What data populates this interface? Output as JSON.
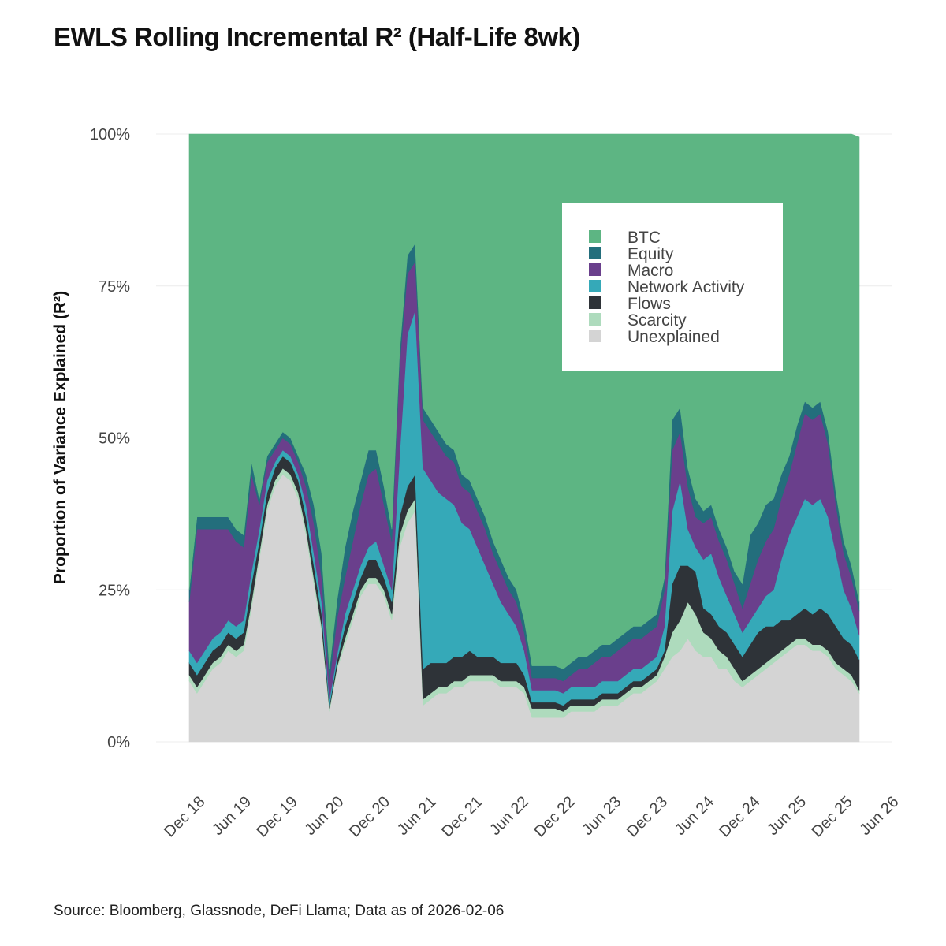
{
  "title": "EWLS Rolling Incremental R² (Half-Life 8wk)",
  "source": "Source: Bloomberg, Glassnode, DeFi Llama; Data as of 2026-02-06",
  "chart_data": {
    "type": "area",
    "stacked": true,
    "title": "EWLS Rolling Incremental R² (Half-Life 8wk)",
    "ylabel": "Proportion of Variance Explained (R²)",
    "xlabel": "",
    "ylim": [
      0,
      100
    ],
    "y_unit": "%",
    "yticks": [
      0,
      25,
      50,
      75,
      100
    ],
    "ytick_labels": [
      "0%",
      "25%",
      "50%",
      "75%",
      "100%"
    ],
    "xticks": [
      "2018-12",
      "2019-06",
      "2019-12",
      "2020-06",
      "2020-12",
      "2021-06",
      "2021-12",
      "2022-06",
      "2022-12",
      "2023-06",
      "2023-12",
      "2024-06",
      "2024-12",
      "2025-06",
      "2025-12",
      "2026-06"
    ],
    "xtick_labels": [
      "Dec 18",
      "Jun 19",
      "Dec 19",
      "Jun 20",
      "Dec 20",
      "Jun 21",
      "Dec 21",
      "Jun 22",
      "Dec 22",
      "Jun 23",
      "Dec 23",
      "Jun 24",
      "Dec 24",
      "Jun 25",
      "Dec 25",
      "Jun 26"
    ],
    "legend_position": "upper-right",
    "grid": "horizontal",
    "x": [
      "2018-11",
      "2018-12",
      "2019-02",
      "2019-03",
      "2019-04",
      "2019-05",
      "2019-06",
      "2019-07",
      "2019-08",
      "2019-09",
      "2019-10",
      "2019-11",
      "2019-12",
      "2020-01",
      "2020-02",
      "2020-03",
      "2020-04",
      "2020-05",
      "2020-06",
      "2020-07",
      "2020-08",
      "2020-09",
      "2020-10",
      "2020-11",
      "2020-12",
      "2021-01",
      "2021-02",
      "2021-03",
      "2021-04",
      "2021-05",
      "2021-06",
      "2021-07",
      "2021-08",
      "2021-09",
      "2021-10",
      "2021-11",
      "2021-12",
      "2022-01",
      "2022-02",
      "2022-03",
      "2022-04",
      "2022-05",
      "2022-06",
      "2022-07",
      "2022-08",
      "2022-09",
      "2022-10",
      "2022-11",
      "2022-12",
      "2023-01",
      "2023-02",
      "2023-03",
      "2023-04",
      "2023-05",
      "2023-06",
      "2023-07",
      "2023-08",
      "2023-09",
      "2023-10",
      "2023-11",
      "2023-12",
      "2024-01",
      "2024-02",
      "2024-03",
      "2024-04",
      "2024-05",
      "2024-06",
      "2024-07",
      "2024-08",
      "2024-09",
      "2024-10",
      "2024-11",
      "2024-12",
      "2025-01",
      "2025-02",
      "2025-03",
      "2025-04",
      "2025-05",
      "2025-06",
      "2025-07",
      "2025-08",
      "2025-09",
      "2025-10",
      "2025-11",
      "2025-12",
      "2026-01",
      "2026-02"
    ],
    "series": [
      {
        "name": "Unexplained",
        "color": "#d4d4d4",
        "values": [
          10,
          8,
          10,
          12,
          13,
          15,
          14,
          15,
          22,
          30,
          38,
          42,
          44,
          43,
          40,
          34,
          26,
          18,
          5,
          12,
          16,
          20,
          24,
          26,
          26,
          24,
          20,
          32,
          36,
          38,
          6,
          7,
          8,
          8,
          9,
          9,
          10,
          10,
          10,
          10,
          9,
          9,
          9,
          8,
          4,
          4,
          4,
          4,
          4,
          5,
          5,
          5,
          5,
          6,
          6,
          6,
          7,
          8,
          8,
          9,
          10,
          12,
          14,
          15,
          17,
          15,
          14,
          14,
          12,
          12,
          10,
          9,
          10,
          11,
          12,
          13,
          14,
          15,
          16,
          16,
          15,
          15,
          14,
          12,
          11,
          10,
          8
        ]
      },
      {
        "name": "Scarcity",
        "color": "#aedbbd",
        "values": [
          1,
          1,
          1,
          1,
          1,
          1,
          1,
          1,
          1,
          1,
          1,
          1,
          1,
          1,
          1,
          1,
          1,
          1,
          0.5,
          0.5,
          1,
          1,
          1,
          1,
          1,
          1,
          1,
          2,
          2,
          2,
          1,
          1,
          1,
          1,
          1,
          1,
          1,
          1,
          1,
          1,
          1,
          1,
          1,
          1,
          1.5,
          1.5,
          1.5,
          1.5,
          1,
          1,
          1,
          1,
          1,
          1,
          1,
          1,
          1,
          1,
          1,
          1,
          1,
          2,
          4,
          5,
          6,
          6,
          4,
          3,
          3,
          2,
          2,
          1,
          1,
          1,
          1,
          1,
          1,
          1,
          1,
          1,
          1,
          1,
          1,
          1,
          1,
          1,
          0.5
        ]
      },
      {
        "name": "Flows",
        "color": "#2e3338",
        "values": [
          2,
          2,
          2,
          2,
          2,
          2,
          2,
          2,
          3,
          2,
          2,
          2,
          2,
          2,
          2,
          2,
          2,
          2,
          0.5,
          1,
          2,
          2,
          2,
          3,
          3,
          2,
          2,
          3,
          4,
          4,
          5,
          5,
          4,
          4,
          4,
          4,
          4,
          3,
          3,
          3,
          3,
          3,
          3,
          2,
          1,
          1,
          1,
          1,
          1,
          1,
          1,
          1,
          1,
          1,
          1,
          1,
          1,
          1,
          1,
          1,
          1,
          1,
          8,
          9,
          6,
          7,
          4,
          4,
          4,
          4,
          4,
          4,
          5,
          6,
          6,
          5,
          5,
          4,
          4,
          5,
          5,
          6,
          6,
          6,
          5,
          5,
          5
        ]
      },
      {
        "name": "Network Activity",
        "color": "#35a9b8",
        "values": [
          2,
          2,
          2,
          2,
          2,
          2,
          2,
          2,
          2,
          2,
          2,
          1,
          1,
          1,
          1,
          2,
          2,
          2,
          1,
          1,
          2,
          2,
          2,
          2,
          3,
          2,
          2,
          10,
          25,
          27,
          33,
          30,
          28,
          27,
          25,
          22,
          20,
          18,
          15,
          12,
          10,
          8,
          6,
          4,
          2,
          2,
          2,
          2,
          2,
          2,
          2,
          2,
          2,
          2,
          2,
          2,
          2,
          2,
          2,
          2,
          2,
          4,
          12,
          14,
          6,
          4,
          8,
          10,
          8,
          6,
          5,
          4,
          4,
          4,
          5,
          6,
          10,
          14,
          16,
          18,
          18,
          18,
          16,
          12,
          8,
          6,
          4
        ]
      },
      {
        "name": "Macro",
        "color": "#6a3f8c",
        "values": [
          8,
          22,
          20,
          18,
          17,
          15,
          14,
          12,
          16,
          4,
          3,
          2,
          2,
          2,
          2,
          3,
          5,
          4,
          3,
          6,
          6,
          8,
          10,
          12,
          12,
          10,
          8,
          15,
          10,
          8,
          8,
          8,
          8,
          7,
          7,
          6,
          6,
          6,
          6,
          5,
          5,
          4,
          4,
          3,
          2,
          2,
          2,
          2,
          2,
          2,
          3,
          3,
          4,
          4,
          4,
          5,
          5,
          5,
          5,
          5,
          5,
          6,
          10,
          8,
          7,
          5,
          6,
          6,
          6,
          6,
          5,
          4,
          6,
          8,
          9,
          10,
          10,
          10,
          12,
          14,
          14,
          14,
          12,
          8,
          6,
          5,
          4
        ]
      },
      {
        "name": "Equity",
        "color": "#236e7c",
        "values": [
          2,
          2,
          2,
          2,
          2,
          2,
          2,
          2,
          2,
          1,
          1,
          1,
          1,
          1,
          1,
          2,
          3,
          4,
          2,
          3,
          5,
          5,
          4,
          4,
          3,
          3,
          2,
          2,
          3,
          3,
          2,
          2,
          2,
          2,
          2,
          2,
          2,
          2,
          2,
          2,
          2,
          2,
          2,
          2,
          2,
          2,
          2,
          2,
          2,
          2,
          2,
          2,
          2,
          2,
          2,
          2,
          2,
          2,
          2,
          2,
          2,
          2,
          5,
          4,
          3,
          3,
          2,
          2,
          2,
          2,
          2,
          4,
          8,
          6,
          6,
          5,
          4,
          3,
          3,
          2,
          2,
          2,
          2,
          2,
          2,
          2,
          1.5
        ]
      },
      {
        "name": "BTC",
        "color": "#5db583",
        "values": [
          75,
          63,
          63,
          63,
          63,
          63,
          65,
          66,
          54,
          60,
          53,
          51,
          49,
          50,
          53,
          56,
          61,
          69,
          88,
          76.5,
          68,
          62,
          57,
          52,
          52,
          58,
          65,
          36,
          20,
          18,
          45,
          47,
          49,
          51,
          52,
          56,
          57,
          60,
          63,
          67,
          70,
          73,
          75,
          80,
          87.5,
          87.5,
          87.5,
          87.5,
          88,
          87,
          86,
          86,
          85,
          84,
          84,
          83,
          82,
          81,
          81,
          80,
          79,
          73,
          47,
          45,
          55,
          60,
          62,
          61,
          65,
          68,
          72,
          74,
          66,
          64,
          61,
          60,
          56,
          53,
          48,
          44,
          45,
          44,
          49,
          59,
          67,
          71,
          76.5
        ]
      }
    ]
  }
}
